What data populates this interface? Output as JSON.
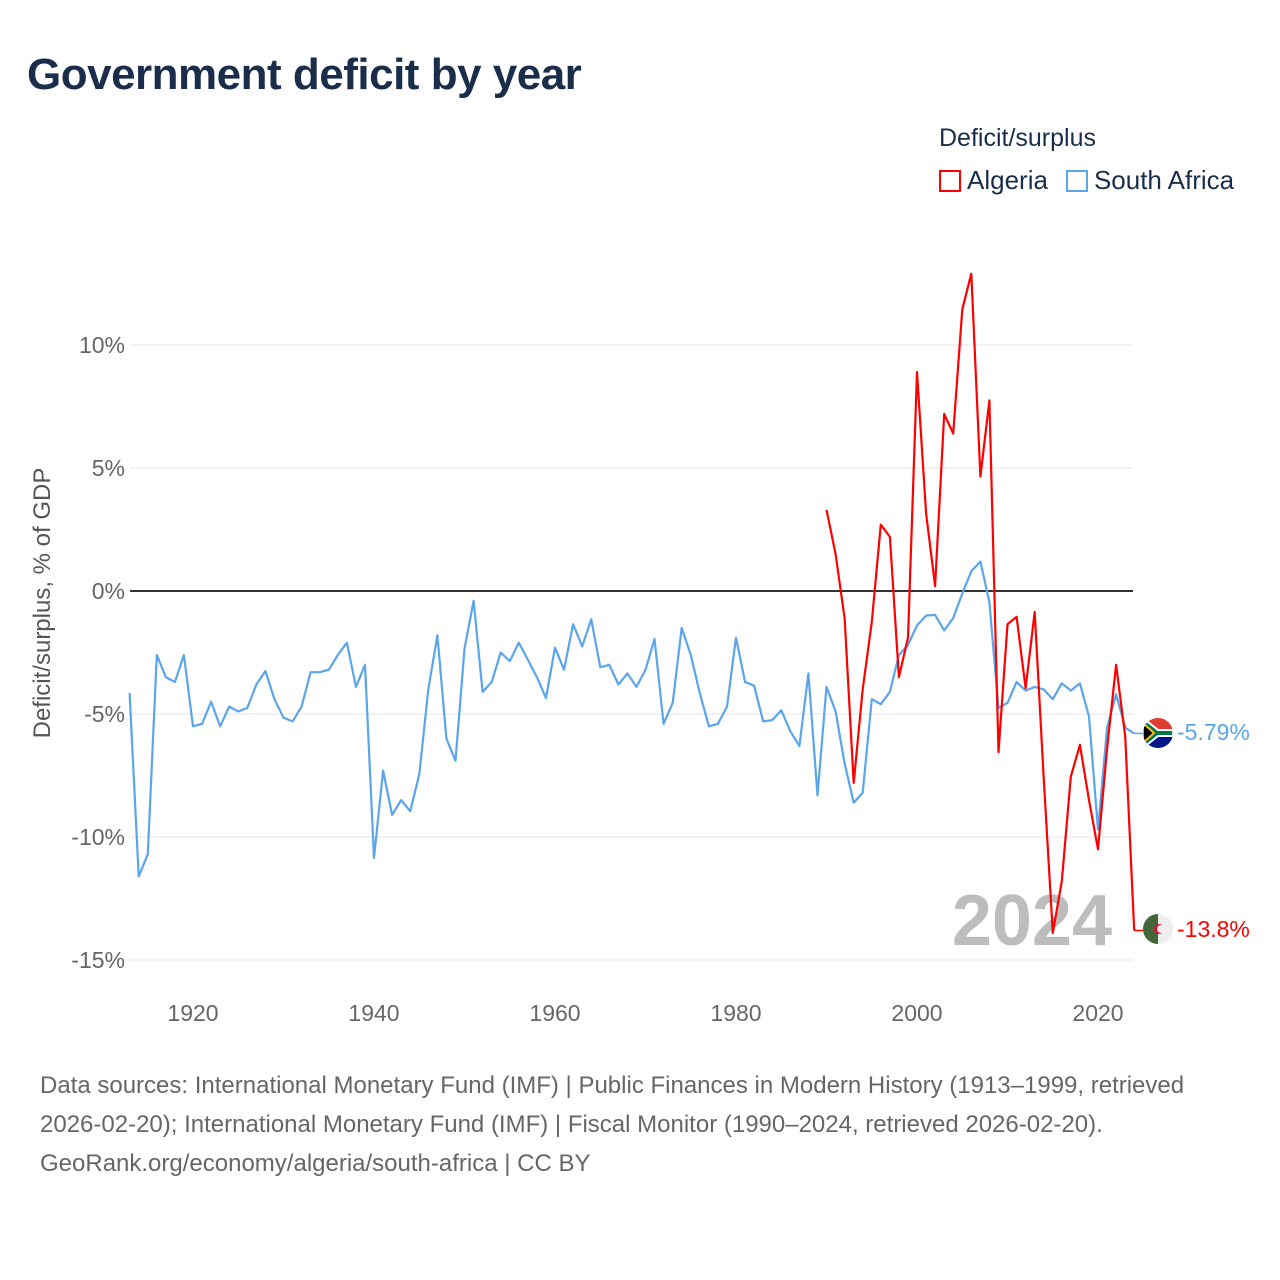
{
  "title": "Government deficit by year",
  "legend": {
    "title": "Deficit/surplus",
    "items": [
      {
        "label": "Algeria",
        "color": "#ff0000"
      },
      {
        "label": "South Africa",
        "color": "#5aa5eb"
      }
    ]
  },
  "watermark_year": "2024",
  "end_labels": {
    "south_africa": "-5.79%",
    "algeria": "-13.8%"
  },
  "footer": {
    "sources": "Data sources: International Monetary Fund (IMF) | Public Finances in Modern History (1913–1999, retrieved 2026-02-20); International Monetary Fund (IMF) | Fiscal Monitor (1990–2024, retrieved 2026-02-20).",
    "credit": "GeoRank.org/economy/algeria/south-africa | CC BY"
  },
  "chart_data": {
    "type": "line",
    "title": "Government deficit by year",
    "xlabel": "",
    "ylabel": "Deficit/surplus, % of GDP",
    "xlim": [
      1913,
      2024
    ],
    "ylim": [
      -16,
      14
    ],
    "x_ticks": [
      1920,
      1940,
      1960,
      1980,
      2000,
      2020
    ],
    "y_ticks": [
      {
        "v": 10,
        "label": "10%"
      },
      {
        "v": 5,
        "label": "5%"
      },
      {
        "v": 0,
        "label": "0%"
      },
      {
        "v": -5,
        "label": "-5%"
      },
      {
        "v": -10,
        "label": "-10%"
      },
      {
        "v": -15,
        "label": "-15%"
      }
    ],
    "grid": true,
    "legend_position": "top-right",
    "series": [
      {
        "name": "South Africa",
        "color": "#5aa5eb",
        "start_year": 1913,
        "values": [
          -4.15,
          -11.6,
          -10.7,
          -2.6,
          -3.5,
          -3.7,
          -2.6,
          -5.5,
          -5.4,
          -4.5,
          -5.5,
          -4.7,
          -4.9,
          -4.75,
          -3.8,
          -3.25,
          -4.4,
          -5.15,
          -5.3,
          -4.7,
          -3.3,
          -3.3,
          -3.2,
          -2.6,
          -2.1,
          -3.9,
          -3.0,
          -10.85,
          -7.3,
          -9.1,
          -8.5,
          -8.95,
          -7.45,
          -4.0,
          -1.8,
          -6.0,
          -6.9,
          -2.35,
          -0.4,
          -4.1,
          -3.7,
          -2.5,
          -2.85,
          -2.1,
          -2.8,
          -3.5,
          -4.35,
          -2.3,
          -3.2,
          -1.35,
          -2.25,
          -1.15,
          -3.1,
          -3.0,
          -3.8,
          -3.35,
          -3.9,
          -3.2,
          -1.95,
          -5.4,
          -4.55,
          -1.5,
          -2.6,
          -4.15,
          -5.5,
          -5.4,
          -4.7,
          -1.9,
          -3.7,
          -3.85,
          -5.3,
          -5.25,
          -4.85,
          -5.7,
          -6.3,
          -3.35,
          -8.3,
          -3.9,
          -4.9,
          -7.0,
          -8.6,
          -8.2,
          -4.4,
          -4.6,
          -4.1,
          -2.6,
          -2.2,
          -1.4,
          -1.0,
          -0.97,
          -1.6,
          -1.1,
          -0.1,
          0.8,
          1.2,
          -0.45,
          -4.75,
          -4.55,
          -3.7,
          -4.05,
          -3.9,
          -4.0,
          -4.4,
          -3.75,
          -4.05,
          -3.75,
          -5.1,
          -9.7,
          -5.55,
          -4.2,
          -5.55,
          -5.79
        ]
      },
      {
        "name": "Algeria",
        "color": "#ff0000",
        "start_year": 1990,
        "values": [
          3.3,
          1.5,
          -1.1,
          -7.8,
          -4.0,
          -1.25,
          2.7,
          2.2,
          -3.5,
          -1.9,
          8.9,
          3.15,
          0.2,
          7.2,
          6.4,
          11.45,
          12.9,
          4.65,
          7.75,
          -6.55,
          -1.35,
          -1.05,
          -3.95,
          -0.85,
          -7.6,
          -13.9,
          -11.8,
          -7.55,
          -6.25,
          -8.5,
          -10.5,
          -6.4,
          -3.0,
          -5.9,
          -13.8
        ]
      }
    ]
  }
}
